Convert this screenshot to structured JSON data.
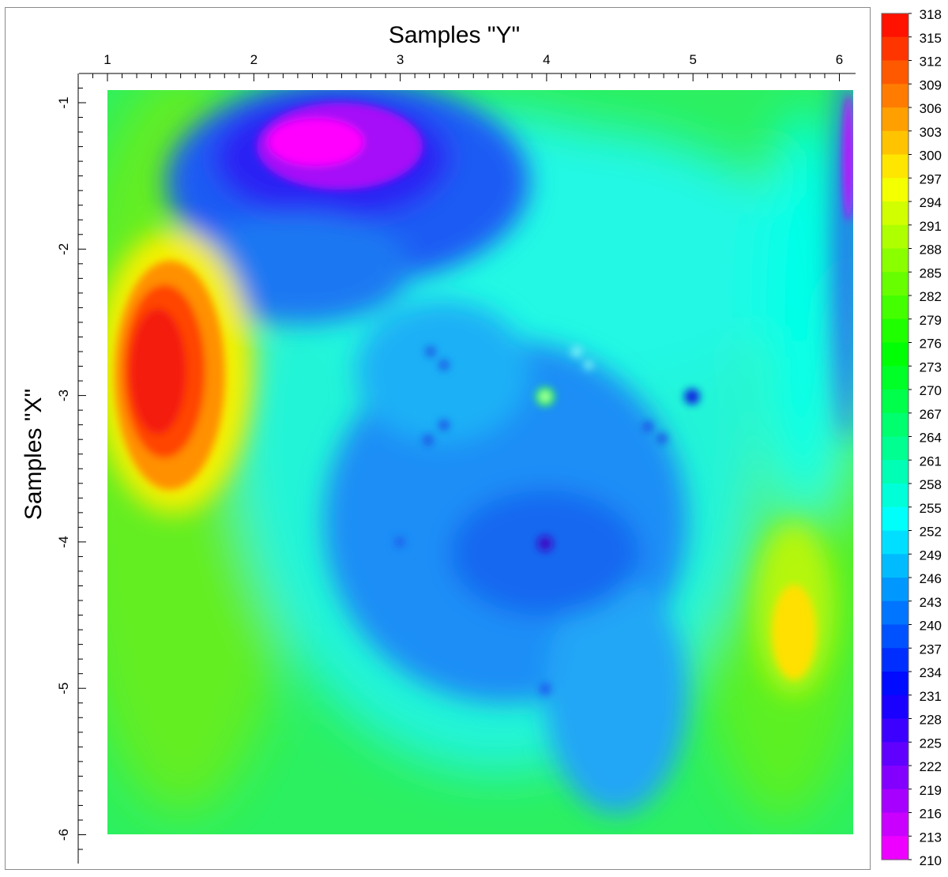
{
  "chart_data": {
    "type": "heatmap",
    "title": "",
    "xlabel": "Samples \"Y\"",
    "ylabel": "Samples \"X\"",
    "xlim": [
      1,
      6.1
    ],
    "ylim": [
      -6,
      -0.9
    ],
    "x_ticks": [
      1,
      2,
      3,
      4,
      5,
      6
    ],
    "x_tick_labels": [
      "1",
      "2",
      "3",
      "4",
      "5",
      "6"
    ],
    "y_ticks": [
      -1,
      -2,
      -3,
      -4,
      -5,
      -6
    ],
    "y_tick_labels": [
      "-1",
      "-2",
      "-3",
      "-4",
      "-5",
      "-6"
    ],
    "x_axis_position": "top",
    "colorbar": {
      "position": "right",
      "min": 210,
      "max": 318,
      "step": 3,
      "labels": [
        "318",
        "315",
        "312",
        "309",
        "306",
        "303",
        "300",
        "297",
        "294",
        "291",
        "288",
        "285",
        "282",
        "279",
        "276",
        "273",
        "270",
        "267",
        "264",
        "261",
        "258",
        "255",
        "252",
        "249",
        "246",
        "243",
        "240",
        "237",
        "234",
        "231",
        "228",
        "225",
        "222",
        "219",
        "216",
        "213",
        "210"
      ]
    },
    "colormap": [
      "#ff00ff",
      "#0000ff",
      "#00ffff",
      "#00ff00",
      "#ffff00",
      "#ff0000"
    ],
    "background_value": 265,
    "features": [
      {
        "label": "hot spot",
        "x": 1.38,
        "y": -2.85,
        "value": 316
      },
      {
        "label": "warm spot",
        "x": 5.65,
        "y": -4.6,
        "value": 299
      },
      {
        "label": "cold spot",
        "x": 2.45,
        "y": -1.25,
        "value": 212
      },
      {
        "label": "cold band",
        "x": 6.05,
        "y": -1.4,
        "value": 220
      },
      {
        "label": "low region",
        "x": 3.9,
        "y": -3.8,
        "value": 242
      },
      {
        "label": "low point",
        "x": 4.0,
        "y": -4.0,
        "value": 222
      },
      {
        "label": "low point",
        "x": 5.0,
        "y": -3.0,
        "value": 230
      },
      {
        "label": "high point",
        "x": 4.0,
        "y": -3.0,
        "value": 270
      }
    ]
  }
}
